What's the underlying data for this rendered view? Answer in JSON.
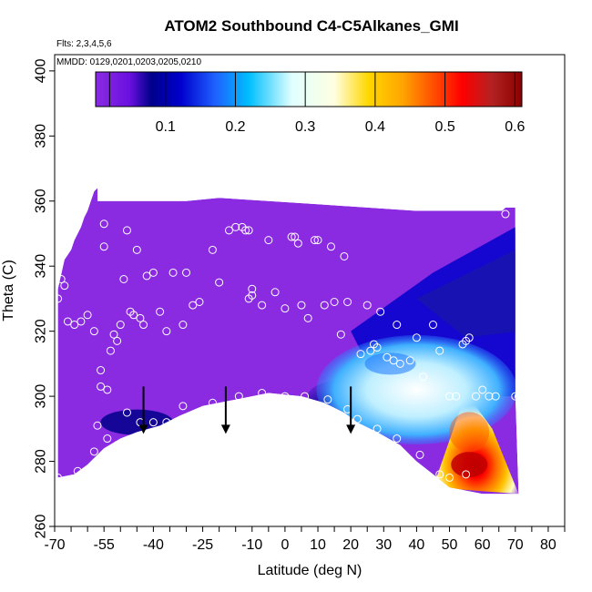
{
  "chart_data": {
    "type": "heatmap",
    "title": "ATOM2 Southbound C4-C5Alkanes_GMI",
    "annotations": [
      "Flts: 2,3,4,5,6",
      "MMDD: 0129,0201,0203,0205,0210"
    ],
    "xlabel": "Latitude (deg N)",
    "ylabel": "Theta (C)",
    "xlim": [
      -70,
      85
    ],
    "ylim": [
      260,
      405
    ],
    "x_ticks": [
      -70,
      -55,
      -40,
      -25,
      -10,
      0,
      10,
      20,
      30,
      40,
      50,
      60,
      70,
      80
    ],
    "y_ticks": [
      260,
      280,
      300,
      320,
      340,
      360,
      380,
      400
    ],
    "colorbar": {
      "range": [
        0.0,
        0.61
      ],
      "ticks": [
        0.1,
        0.2,
        0.3,
        0.4,
        0.5,
        0.6
      ],
      "colors": [
        "#8a2be2",
        "#6a10e0",
        "#00008b",
        "#0000cd",
        "#1e60ff",
        "#00bfff",
        "#e0ffff",
        "#ffffe0",
        "#ffd700",
        "#ffa500",
        "#ff4500",
        "#ff0000",
        "#b22222",
        "#8b0000"
      ]
    },
    "field_regions": [
      {
        "level": "low",
        "value": 0.02,
        "description_color": "#8a2be2"
      },
      {
        "level": "min",
        "value": 0.08,
        "description_color": "#00008b"
      },
      {
        "level": "mid",
        "value": 0.28,
        "description_color": "#bfefff"
      },
      {
        "level": "max",
        "value": 0.58,
        "description_color": "#b22222"
      }
    ],
    "arrows_lat": [
      -43,
      -18,
      20
    ],
    "observations": [
      {
        "x": -69,
        "y": 330
      },
      {
        "x": -68,
        "y": 336
      },
      {
        "x": -67,
        "y": 334
      },
      {
        "x": -66,
        "y": 323
      },
      {
        "x": -64,
        "y": 322
      },
      {
        "x": -62,
        "y": 323
      },
      {
        "x": -60,
        "y": 325
      },
      {
        "x": -58,
        "y": 320
      },
      {
        "x": -56,
        "y": 308
      },
      {
        "x": -56,
        "y": 303
      },
      {
        "x": -55,
        "y": 346
      },
      {
        "x": -55,
        "y": 353
      },
      {
        "x": -54,
        "y": 302
      },
      {
        "x": -53,
        "y": 314
      },
      {
        "x": -52,
        "y": 319
      },
      {
        "x": -51,
        "y": 317
      },
      {
        "x": -50,
        "y": 322
      },
      {
        "x": -49,
        "y": 336
      },
      {
        "x": -48,
        "y": 351
      },
      {
        "x": -47,
        "y": 326
      },
      {
        "x": -46,
        "y": 325
      },
      {
        "x": -45,
        "y": 345
      },
      {
        "x": -44,
        "y": 324
      },
      {
        "x": -43,
        "y": 322
      },
      {
        "x": -42,
        "y": 337
      },
      {
        "x": -40,
        "y": 338
      },
      {
        "x": -38,
        "y": 326
      },
      {
        "x": -36,
        "y": 320
      },
      {
        "x": -34,
        "y": 338
      },
      {
        "x": -31,
        "y": 322
      },
      {
        "x": -30,
        "y": 338
      },
      {
        "x": -28,
        "y": 328
      },
      {
        "x": -26,
        "y": 329
      },
      {
        "x": -22,
        "y": 345
      },
      {
        "x": -20,
        "y": 335
      },
      {
        "x": -17,
        "y": 351
      },
      {
        "x": -15,
        "y": 352
      },
      {
        "x": -13,
        "y": 352
      },
      {
        "x": -12,
        "y": 351
      },
      {
        "x": -11,
        "y": 351
      },
      {
        "x": -11,
        "y": 330
      },
      {
        "x": -10,
        "y": 333
      },
      {
        "x": -10,
        "y": 331
      },
      {
        "x": -7,
        "y": 328
      },
      {
        "x": -5,
        "y": 348
      },
      {
        "x": -3,
        "y": 332
      },
      {
        "x": 0,
        "y": 327
      },
      {
        "x": 2,
        "y": 349
      },
      {
        "x": 3,
        "y": 349
      },
      {
        "x": 4,
        "y": 347
      },
      {
        "x": 5,
        "y": 328
      },
      {
        "x": 7,
        "y": 324
      },
      {
        "x": 9,
        "y": 348
      },
      {
        "x": 10,
        "y": 348
      },
      {
        "x": 12,
        "y": 328
      },
      {
        "x": 14,
        "y": 346
      },
      {
        "x": 15,
        "y": 329
      },
      {
        "x": 17,
        "y": 319
      },
      {
        "x": 18,
        "y": 343
      },
      {
        "x": 19,
        "y": 329
      },
      {
        "x": 23,
        "y": 313
      },
      {
        "x": 25,
        "y": 328
      },
      {
        "x": 26,
        "y": 314
      },
      {
        "x": 27,
        "y": 316
      },
      {
        "x": 28,
        "y": 315
      },
      {
        "x": 29,
        "y": 326
      },
      {
        "x": 31,
        "y": 312
      },
      {
        "x": 33,
        "y": 311
      },
      {
        "x": 34,
        "y": 322
      },
      {
        "x": 35,
        "y": 310
      },
      {
        "x": 38,
        "y": 311
      },
      {
        "x": 40,
        "y": 318
      },
      {
        "x": 42,
        "y": 306
      },
      {
        "x": 45,
        "y": 322
      },
      {
        "x": 47,
        "y": 314
      },
      {
        "x": 50,
        "y": 300
      },
      {
        "x": 52,
        "y": 300
      },
      {
        "x": 54,
        "y": 316
      },
      {
        "x": 55,
        "y": 317
      },
      {
        "x": 56,
        "y": 318
      },
      {
        "x": 58,
        "y": 300
      },
      {
        "x": 60,
        "y": 302
      },
      {
        "x": 62,
        "y": 300
      },
      {
        "x": 64,
        "y": 300
      },
      {
        "x": 67,
        "y": 356
      },
      {
        "x": 70,
        "y": 300
      },
      {
        "x": 71,
        "y": 300
      },
      {
        "x": -57,
        "y": 291
      },
      {
        "x": -54,
        "y": 287
      },
      {
        "x": -51,
        "y": 285
      },
      {
        "x": -48,
        "y": 295
      },
      {
        "x": -44,
        "y": 292
      },
      {
        "x": -40,
        "y": 292
      },
      {
        "x": -36,
        "y": 292
      },
      {
        "x": -31,
        "y": 297
      },
      {
        "x": -22,
        "y": 298
      },
      {
        "x": -14,
        "y": 300
      },
      {
        "x": -7,
        "y": 301
      },
      {
        "x": 0,
        "y": 300
      },
      {
        "x": 6,
        "y": 300
      },
      {
        "x": 13,
        "y": 299
      },
      {
        "x": 19,
        "y": 296
      },
      {
        "x": 22,
        "y": 293
      },
      {
        "x": 28,
        "y": 290
      },
      {
        "x": 34,
        "y": 287
      },
      {
        "x": 41,
        "y": 282
      },
      {
        "x": 47,
        "y": 276
      },
      {
        "x": 50,
        "y": 275
      },
      {
        "x": 55,
        "y": 276
      },
      {
        "x": -58,
        "y": 283
      },
      {
        "x": -63,
        "y": 277
      },
      {
        "x": -69,
        "y": 275
      }
    ]
  }
}
